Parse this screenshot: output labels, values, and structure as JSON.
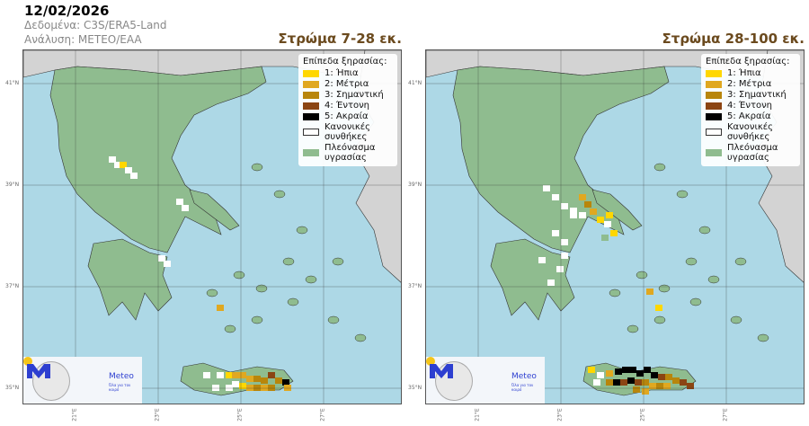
{
  "header": {
    "date": "12/02/2026",
    "data_source": "Δεδομένα: C3S/ERA5-Land",
    "analysis": "Ανάλυση: METEO/EAA"
  },
  "panels": [
    {
      "title": "Στρώμα 7-28 εκ."
    },
    {
      "title": "Στρώμα 28-100 εκ."
    }
  ],
  "legend": {
    "title": "Επίπεδα ξηρασίας:",
    "items": [
      {
        "label": "1:  Ήπια",
        "color": "#ffd700"
      },
      {
        "label": "2:  Μέτρια",
        "color": "#e0a820"
      },
      {
        "label": "3:  Σημαντική",
        "color": "#b8860b"
      },
      {
        "label": "4:  Έντονη",
        "color": "#8b4513"
      },
      {
        "label": "5:  Ακραία",
        "color": "#000000"
      },
      {
        "label": "Κανονικές συνθήκες",
        "color": "#ffffff"
      },
      {
        "label": "Πλεόνασμα υγρασίας",
        "color": "#8fbc8f"
      }
    ]
  },
  "logo": {
    "name": "Meteo",
    "slogan": "Όλα για τον καιρό"
  },
  "axes": {
    "lat": [
      "41°N",
      "39°N",
      "37°N",
      "35°N"
    ],
    "lon": [
      "21°E",
      "23°E",
      "25°E",
      "27°E"
    ]
  },
  "colors": {
    "sea": "#add8e6",
    "neighbor_land": "#d3d3d3",
    "title": "#6b4a1e"
  }
}
